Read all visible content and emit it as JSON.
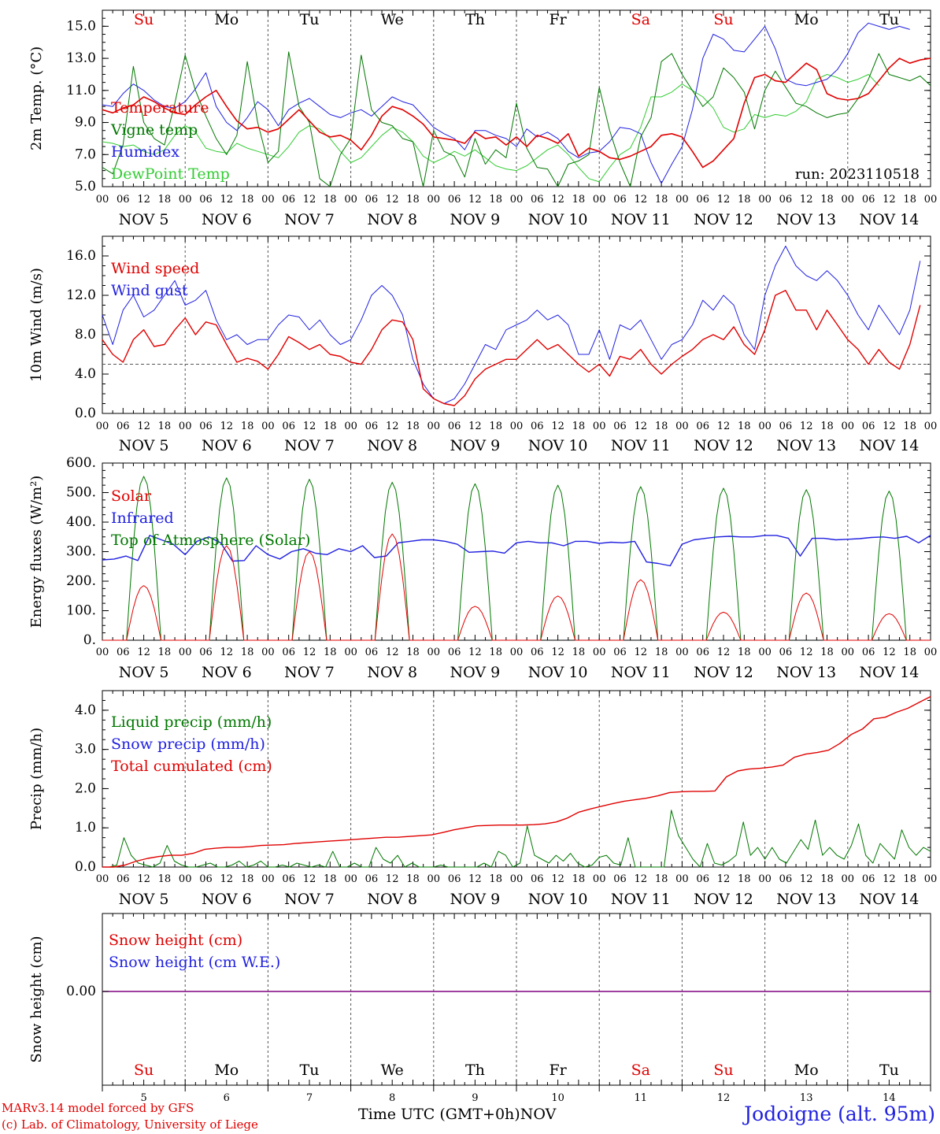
{
  "run_label": "run: 2023110518",
  "x_axis": {
    "hour_ticks": [
      "00",
      "06",
      "12",
      "18"
    ],
    "end_tick": "00",
    "dates": [
      "NOV  5",
      "NOV  6",
      "NOV  7",
      "NOV  8",
      "NOV  9",
      "NOV 10",
      "NOV 11",
      "NOV 12",
      "NOV 13",
      "NOV 14"
    ],
    "weekdays": [
      "Su",
      "Mo",
      "Tu",
      "We",
      "Th",
      "Fr",
      "Sa",
      "Su",
      "Mo",
      "Tu"
    ],
    "weekday_colors": [
      "#e00000",
      "#000000",
      "#000000",
      "#000000",
      "#000000",
      "#000000",
      "#e00000",
      "#e00000",
      "#000000",
      "#000000"
    ],
    "day_numbers": [
      "5",
      "6",
      "7",
      "8",
      "9",
      "10",
      "11",
      "12",
      "13",
      "14"
    ],
    "title": "Time UTC (GMT+0h)",
    "month": "NOV",
    "xlim_hours": [
      0,
      240
    ]
  },
  "footer": {
    "credit_line1": "MARv3.14 model forced by GFS",
    "credit_line2": "(c) Lab. of Climatology, University of Liege",
    "station": "Jodoigne (alt. 95m)"
  },
  "colors": {
    "red": "#e00000",
    "blue": "#2020e0",
    "green": "#007700",
    "light_green": "#33cc33",
    "purple": "#800080",
    "gray": "#555555"
  },
  "chart_data": [
    {
      "type": "line",
      "ylabel": "2m Temp. (°C)",
      "ylim": [
        5.0,
        16.0
      ],
      "yticks": [
        5.0,
        7.0,
        9.0,
        11.0,
        13.0,
        15.0
      ],
      "ytick_labels": [
        "5.0",
        "7.0",
        "9.0",
        "11.0",
        "13.0",
        "15.0"
      ],
      "x_step_hours": 3,
      "series": [
        {
          "name": "Temperature",
          "color": "#e00000",
          "width": 1.6,
          "values": [
            9.8,
            9.6,
            9.9,
            10.1,
            10.6,
            10.3,
            9.9,
            9.6,
            9.5,
            10.1,
            10.6,
            11.0,
            10.0,
            9.1,
            8.6,
            8.7,
            8.4,
            8.6,
            9.2,
            9.8,
            9.1,
            8.4,
            8.1,
            8.2,
            7.9,
            7.3,
            8.2,
            9.4,
            10.0,
            9.8,
            9.4,
            8.9,
            8.1,
            8.0,
            7.9,
            7.7,
            8.4,
            8.0,
            8.1,
            7.6,
            8.1,
            7.5,
            8.2,
            8.0,
            7.7,
            8.3,
            6.9,
            7.4,
            7.2,
            6.8,
            6.7,
            6.9,
            7.2,
            7.5,
            8.2,
            8.3,
            8.1,
            7.2,
            6.2,
            6.6,
            7.3,
            8.0,
            10.2,
            11.8,
            12.0,
            11.6,
            11.5,
            12.1,
            12.7,
            12.3,
            10.8,
            10.5,
            10.4,
            10.5,
            10.8,
            11.6,
            12.4,
            13.0,
            12.7,
            12.9,
            13.0
          ]
        },
        {
          "name": "Vigne temp",
          "color": "#007700",
          "width": 1.0,
          "values": [
            6.2,
            5.8,
            7.6,
            12.5,
            9.0,
            8.0,
            7.6,
            10.2,
            13.2,
            11.0,
            9.4,
            8.0,
            7.0,
            8.2,
            12.8,
            9.0,
            6.5,
            7.2,
            13.4,
            10.0,
            9.0,
            5.5,
            5.0,
            7.0,
            8.0,
            13.2,
            9.8,
            9.0,
            8.8,
            8.0,
            7.8,
            5.0,
            8.5,
            7.2,
            6.9,
            5.6,
            8.0,
            6.4,
            7.3,
            6.8,
            10.2,
            7.4,
            6.2,
            6.1,
            5.0,
            6.4,
            6.6,
            7.0,
            11.2,
            8.5,
            6.5,
            5.0,
            8.1,
            9.3,
            12.8,
            13.3,
            12.0,
            11.0,
            10.0,
            10.6,
            12.4,
            11.8,
            10.9,
            8.6,
            11.0,
            12.2,
            11.2,
            10.2,
            10.0,
            9.6,
            9.3,
            9.5,
            9.6,
            10.5,
            11.7,
            13.3,
            12.0,
            11.8,
            11.6,
            11.9,
            11.3
          ]
        },
        {
          "name": "Humidex",
          "color": "#2020e0",
          "width": 1.0,
          "values": [
            10.1,
            10.0,
            10.8,
            11.4,
            11.0,
            10.4,
            10.0,
            9.9,
            10.3,
            11.1,
            12.1,
            10.0,
            9.0,
            8.5,
            9.3,
            10.3,
            9.8,
            8.8,
            9.8,
            10.2,
            10.5,
            10.0,
            9.5,
            9.3,
            9.6,
            9.8,
            9.4,
            10.0,
            10.6,
            10.3,
            10.1,
            9.4,
            8.7,
            8.3,
            8.0,
            7.3,
            8.5,
            8.5,
            8.2,
            8.0,
            7.5,
            8.6,
            8.1,
            8.4,
            8.0,
            7.2,
            6.8,
            7.1,
            7.2,
            7.8,
            8.7,
            8.6,
            8.3,
            6.5,
            5.2,
            6.4,
            7.5,
            9.8,
            13.0,
            14.5,
            14.2,
            13.5,
            13.4,
            14.2,
            15.0,
            13.6,
            11.7,
            11.4,
            11.3,
            11.5,
            11.7,
            12.3,
            13.3,
            14.6,
            15.2,
            15.0,
            14.8,
            15.0,
            14.8
          ]
        },
        {
          "name": "DewPoint Temp",
          "color": "#33cc33",
          "width": 1.0,
          "values": [
            7.8,
            7.7,
            7.5,
            7.6,
            7.2,
            7.0,
            7.3,
            8.2,
            8.8,
            8.4,
            7.4,
            7.2,
            7.1,
            7.7,
            7.4,
            7.2,
            7.0,
            6.8,
            7.5,
            8.4,
            8.8,
            8.6,
            8.0,
            7.2,
            6.5,
            6.8,
            7.5,
            8.2,
            8.7,
            8.4,
            7.8,
            6.9,
            6.5,
            6.8,
            7.2,
            6.9,
            7.3,
            6.8,
            6.3,
            6.1,
            6.0,
            6.3,
            6.8,
            7.3,
            7.6,
            7.0,
            6.2,
            5.5,
            5.3,
            6.2,
            7.0,
            7.4,
            8.7,
            10.6,
            10.6,
            10.9,
            11.4,
            11.0,
            10.6,
            9.9,
            8.7,
            8.4,
            8.6,
            9.5,
            9.3,
            9.5,
            9.4,
            9.7,
            10.3,
            11.7,
            12.0,
            11.8,
            11.5,
            11.7,
            12.0,
            11.3
          ]
        }
      ],
      "legend": [
        "Temperature",
        "Vigne temp",
        "Humidex",
        "DewPoint Temp"
      ],
      "legend_placement": "top-left"
    },
    {
      "type": "line",
      "ylabel": "10m Wind (m/s)",
      "ylim": [
        0.0,
        18.0
      ],
      "yticks": [
        0.0,
        4.0,
        8.0,
        12.0,
        16.0
      ],
      "ytick_labels": [
        "0.0",
        "4.0",
        "8.0",
        "12.0",
        "16.0"
      ],
      "reference_line": 5.0,
      "x_step_hours": 3,
      "series": [
        {
          "name": "Wind speed",
          "color": "#e00000",
          "width": 1.4,
          "values": [
            7.5,
            6.0,
            5.2,
            7.5,
            8.5,
            6.8,
            7.0,
            8.5,
            9.7,
            8.0,
            9.3,
            9.0,
            7.0,
            5.2,
            5.6,
            5.3,
            4.5,
            6.0,
            7.8,
            7.2,
            6.5,
            7.0,
            6.0,
            5.8,
            5.2,
            5.0,
            6.5,
            8.5,
            9.5,
            9.3,
            7.5,
            2.5,
            1.5,
            1.0,
            0.8,
            1.8,
            3.5,
            4.5,
            5.0,
            5.5,
            5.5,
            6.5,
            7.5,
            6.5,
            7.0,
            6.0,
            5.0,
            4.2,
            5.0,
            3.8,
            5.8,
            5.5,
            6.5,
            5.0,
            4.0,
            5.0,
            5.8,
            6.5,
            7.5,
            8.0,
            7.5,
            8.8,
            7.0,
            6.0,
            8.5,
            12.0,
            12.5,
            10.5,
            10.5,
            8.5,
            10.5,
            9.0,
            7.5,
            6.5,
            5.0,
            6.5,
            5.2,
            4.5,
            7.0,
            11.0
          ]
        },
        {
          "name": "Wind gust",
          "color": "#2020e0",
          "width": 1.0,
          "values": [
            10.0,
            7.0,
            10.5,
            12.0,
            9.8,
            10.5,
            12.0,
            13.5,
            11.0,
            11.5,
            12.5,
            9.5,
            7.5,
            8.0,
            7.0,
            7.5,
            7.5,
            9.0,
            10.0,
            9.8,
            8.5,
            9.5,
            8.0,
            7.0,
            7.5,
            9.5,
            12.0,
            13.0,
            12.0,
            10.0,
            5.5,
            3.0,
            1.5,
            1.0,
            1.5,
            3.0,
            5.0,
            7.0,
            6.5,
            8.5,
            9.0,
            9.5,
            10.5,
            9.5,
            10.0,
            9.0,
            6.0,
            6.0,
            8.5,
            5.5,
            9.0,
            8.5,
            9.5,
            7.5,
            5.5,
            7.0,
            7.5,
            9.0,
            11.5,
            10.5,
            12.0,
            11.0,
            8.0,
            6.5,
            12.0,
            15.0,
            17.0,
            15.0,
            14.0,
            13.5,
            14.5,
            13.5,
            12.0,
            10.0,
            8.5,
            11.0,
            9.5,
            8.0,
            10.5,
            15.5
          ]
        }
      ],
      "legend": [
        "Wind speed",
        "Wind gust"
      ],
      "legend_placement": "top-left"
    },
    {
      "type": "line",
      "ylabel": "Energy fluxes (W/m²)",
      "ylim": [
        0,
        600
      ],
      "yticks": [
        0,
        100,
        200,
        300,
        400,
        500,
        600
      ],
      "ytick_labels": [
        "0.",
        "100.",
        "200.",
        "300.",
        "400.",
        "500.",
        "600."
      ],
      "x_step_hours": 3,
      "series": [
        {
          "name": "Solar",
          "color": "#e00000",
          "width": 1.0,
          "daily_peaks_w_m2": [
            185,
            320,
            300,
            360,
            115,
            150,
            205,
            95,
            160,
            90
          ]
        },
        {
          "name": "Infrared",
          "color": "#2020e0",
          "width": 1.4,
          "values": [
            272,
            275,
            285,
            270,
            355,
            340,
            325,
            290,
            335,
            350,
            330,
            268,
            270,
            320,
            290,
            275,
            300,
            310,
            295,
            290,
            310,
            300,
            320,
            280,
            285,
            330,
            335,
            340,
            340,
            335,
            325,
            298,
            300,
            302,
            295,
            330,
            335,
            330,
            330,
            320,
            335,
            335,
            328,
            332,
            330,
            335,
            265,
            260,
            252,
            325,
            340,
            345,
            350,
            352,
            350,
            350,
            355,
            355,
            345,
            285,
            345,
            345,
            340,
            342,
            344,
            348,
            350,
            345,
            352,
            330,
            355
          ]
        },
        {
          "name": "Top of Atmosphere (Solar)",
          "color": "#007700",
          "width": 1.0,
          "daily_peaks_w_m2": [
            555,
            550,
            545,
            535,
            530,
            525,
            520,
            515,
            510,
            505
          ]
        }
      ],
      "legend": [
        "Solar",
        "Infrared",
        "Top of Atmosphere (Solar)"
      ],
      "legend_placement": "top-left"
    },
    {
      "type": "line",
      "ylabel": "Precip (mm/h)",
      "ylim": [
        0.0,
        4.5
      ],
      "yticks": [
        0.0,
        1.0,
        2.0,
        3.0,
        4.0
      ],
      "ytick_labels": [
        "0.0",
        "1.0",
        "2.0",
        "3.0",
        "4.0"
      ],
      "x_step_hours": 3,
      "series": [
        {
          "name": "Liquid precip (mm/h)",
          "color": "#007700",
          "width": 1.0,
          "values": [
            0,
            0,
            0.05,
            0.75,
            0.3,
            0.1,
            0.05,
            0,
            0.1,
            0.55,
            0.15,
            0.05,
            0,
            0,
            0.05,
            0.1,
            0,
            0,
            0.05,
            0.15,
            0,
            0.05,
            0.15,
            0,
            0,
            0.05,
            0,
            0.1,
            0.05,
            0,
            0.05,
            0,
            0.4,
            0,
            0,
            0.1,
            0,
            0,
            0.5,
            0.2,
            0.1,
            0.3,
            0,
            0.1,
            0,
            0,
            0,
            0.05,
            0,
            0,
            0,
            0,
            0,
            0.1,
            0,
            0.4,
            0.3,
            0,
            0.1,
            1.05,
            0.3,
            0.2,
            0.1,
            0.3,
            0.15,
            0.35,
            0.1,
            0,
            0.05,
            0.25,
            0.3,
            0.1,
            0.05,
            0.75,
            0,
            0,
            0,
            0,
            0,
            1.45,
            0.8,
            0.5,
            0.2,
            0,
            0.6,
            0.1,
            0.05,
            0.15,
            0.3,
            1.15,
            0.3,
            0.5,
            0.2,
            0.5,
            0.2,
            0.1,
            0.4,
            0.7,
            0.45,
            1.2,
            0.3,
            0.5,
            0.3,
            0.2,
            0.55,
            1.1,
            0.3,
            0.1,
            0.6,
            0.4,
            0.2,
            0.95,
            0.5,
            0.3,
            0.5,
            0.4
          ]
        },
        {
          "name": "Snow precip (mm/h)",
          "color": "#2020e0",
          "width": 1.0,
          "values": []
        },
        {
          "name": "Total cumulated (cm)",
          "color": "#e00000",
          "width": 1.4,
          "values": [
            0,
            0,
            0.05,
            0.15,
            0.22,
            0.27,
            0.3,
            0.3,
            0.35,
            0.45,
            0.48,
            0.5,
            0.5,
            0.52,
            0.55,
            0.56,
            0.57,
            0.6,
            0.62,
            0.64,
            0.66,
            0.68,
            0.7,
            0.72,
            0.74,
            0.76,
            0.76,
            0.78,
            0.8,
            0.82,
            0.88,
            0.95,
            1.0,
            1.05,
            1.06,
            1.07,
            1.07,
            1.07,
            1.08,
            1.1,
            1.15,
            1.25,
            1.4,
            1.48,
            1.55,
            1.62,
            1.68,
            1.72,
            1.76,
            1.82,
            1.9,
            1.92,
            1.93,
            1.93,
            1.94,
            2.3,
            2.45,
            2.5,
            2.52,
            2.55,
            2.6,
            2.8,
            2.88,
            2.92,
            2.98,
            3.15,
            3.38,
            3.52,
            3.78,
            3.82,
            3.95,
            4.05,
            4.2,
            4.35
          ]
        }
      ],
      "legend": [
        "Liquid precip (mm/h)",
        "Snow precip (mm/h)",
        "Total cumulated (cm)"
      ],
      "legend_placement": "top-left"
    },
    {
      "type": "line",
      "ylabel": "Snow height (cm)",
      "ytick_labels": [
        "0.00"
      ],
      "series": [
        {
          "name": "Snow height (cm)",
          "color": "#e00000",
          "values": [
            0,
            0
          ]
        },
        {
          "name": "Snow height (cm W.E.)",
          "color": "#2020e0",
          "values": [
            0,
            0
          ]
        }
      ],
      "legend": [
        "Snow height (cm)",
        "Snow height (cm W.E.)"
      ],
      "legend_placement": "top-left"
    }
  ]
}
